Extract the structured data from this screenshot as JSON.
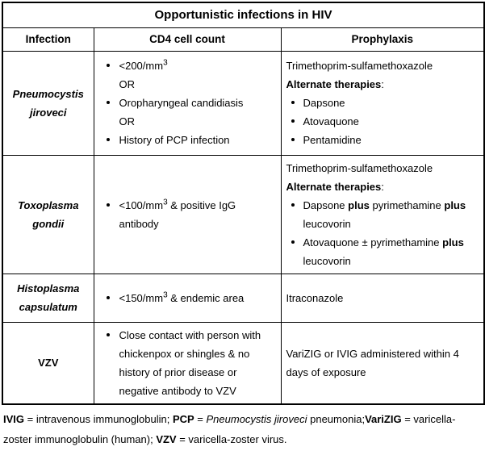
{
  "title": "Opportunistic infections in HIV",
  "columns": [
    "Infection",
    "CD4 cell count",
    "Prophylaxis"
  ],
  "rows": [
    {
      "name": "Pneumocystis jiroveci",
      "cd4": [
        {
          "bullet": true,
          "segments": [
            {
              "t": "<200/mm"
            },
            {
              "t": "3",
              "sup": true
            }
          ]
        },
        {
          "bullet": false,
          "segments": [
            {
              "t": "OR"
            }
          ]
        },
        {
          "bullet": true,
          "segments": [
            {
              "t": "Oropharyngeal candidiasis"
            }
          ]
        },
        {
          "bullet": false,
          "segments": [
            {
              "t": "OR"
            }
          ]
        },
        {
          "bullet": true,
          "segments": [
            {
              "t": "History of PCP infection"
            }
          ]
        }
      ],
      "prophylaxis": [
        {
          "bullet": false,
          "segments": [
            {
              "t": "Trimethoprim-sulfamethoxazole"
            }
          ]
        },
        {
          "bullet": false,
          "segments": [
            {
              "t": "Alternate therapies",
              "b": true
            },
            {
              "t": ":"
            }
          ]
        },
        {
          "bullet": true,
          "segments": [
            {
              "t": "Dapsone"
            }
          ]
        },
        {
          "bullet": true,
          "segments": [
            {
              "t": "Atovaquone"
            }
          ]
        },
        {
          "bullet": true,
          "segments": [
            {
              "t": "Pentamidine"
            }
          ]
        }
      ]
    },
    {
      "name": "Toxoplasma gondii",
      "cd4": [
        {
          "bullet": true,
          "segments": [
            {
              "t": "<100/mm"
            },
            {
              "t": "3",
              "sup": true
            },
            {
              "t": " & positive IgG antibody"
            }
          ]
        }
      ],
      "prophylaxis": [
        {
          "bullet": false,
          "segments": [
            {
              "t": "Trimethoprim-sulfamethoxazole"
            }
          ]
        },
        {
          "bullet": false,
          "segments": [
            {
              "t": "Alternate therapies",
              "b": true
            },
            {
              "t": ":"
            }
          ]
        },
        {
          "bullet": true,
          "segments": [
            {
              "t": "Dapsone "
            },
            {
              "t": "plus",
              "b": true
            },
            {
              "t": " pyrimethamine "
            },
            {
              "t": "plus",
              "b": true
            },
            {
              "t": " leucovorin"
            }
          ]
        },
        {
          "bullet": true,
          "segments": [
            {
              "t": "Atovaquone ± pyrimethamine "
            },
            {
              "t": "plus",
              "b": true
            },
            {
              "t": " leucovorin"
            }
          ]
        }
      ]
    },
    {
      "name": "Histoplasma capsulatum",
      "cd4": [
        {
          "bullet": true,
          "segments": [
            {
              "t": "<150/mm"
            },
            {
              "t": "3",
              "sup": true
            },
            {
              "t": " & endemic area"
            }
          ]
        }
      ],
      "prophylaxis": [
        {
          "bullet": false,
          "segments": [
            {
              "t": "Itraconazole"
            }
          ]
        }
      ]
    },
    {
      "name": "VZV",
      "cd4": [
        {
          "bullet": true,
          "segments": [
            {
              "t": "Close contact with person with chickenpox or shingles & no history of prior disease or negative antibody to VZV"
            }
          ]
        }
      ],
      "prophylaxis": [
        {
          "bullet": false,
          "segments": [
            {
              "t": "VariZIG or IVIG administered within 4 days of exposure"
            }
          ]
        }
      ]
    }
  ],
  "footnote": [
    {
      "t": "IVIG",
      "b": true
    },
    {
      "t": " = intravenous immunoglobulin; "
    },
    {
      "t": "PCP",
      "b": true
    },
    {
      "t": " = "
    },
    {
      "t": "Pneumocystis jiroveci",
      "i": true
    },
    {
      "t": " pneumonia;"
    },
    {
      "t": "VariZIG",
      "b": true
    },
    {
      "t": " = varicella-zoster immunoglobulin (human); "
    },
    {
      "t": "VZV",
      "b": true
    },
    {
      "t": " = varicella-zoster virus."
    }
  ]
}
